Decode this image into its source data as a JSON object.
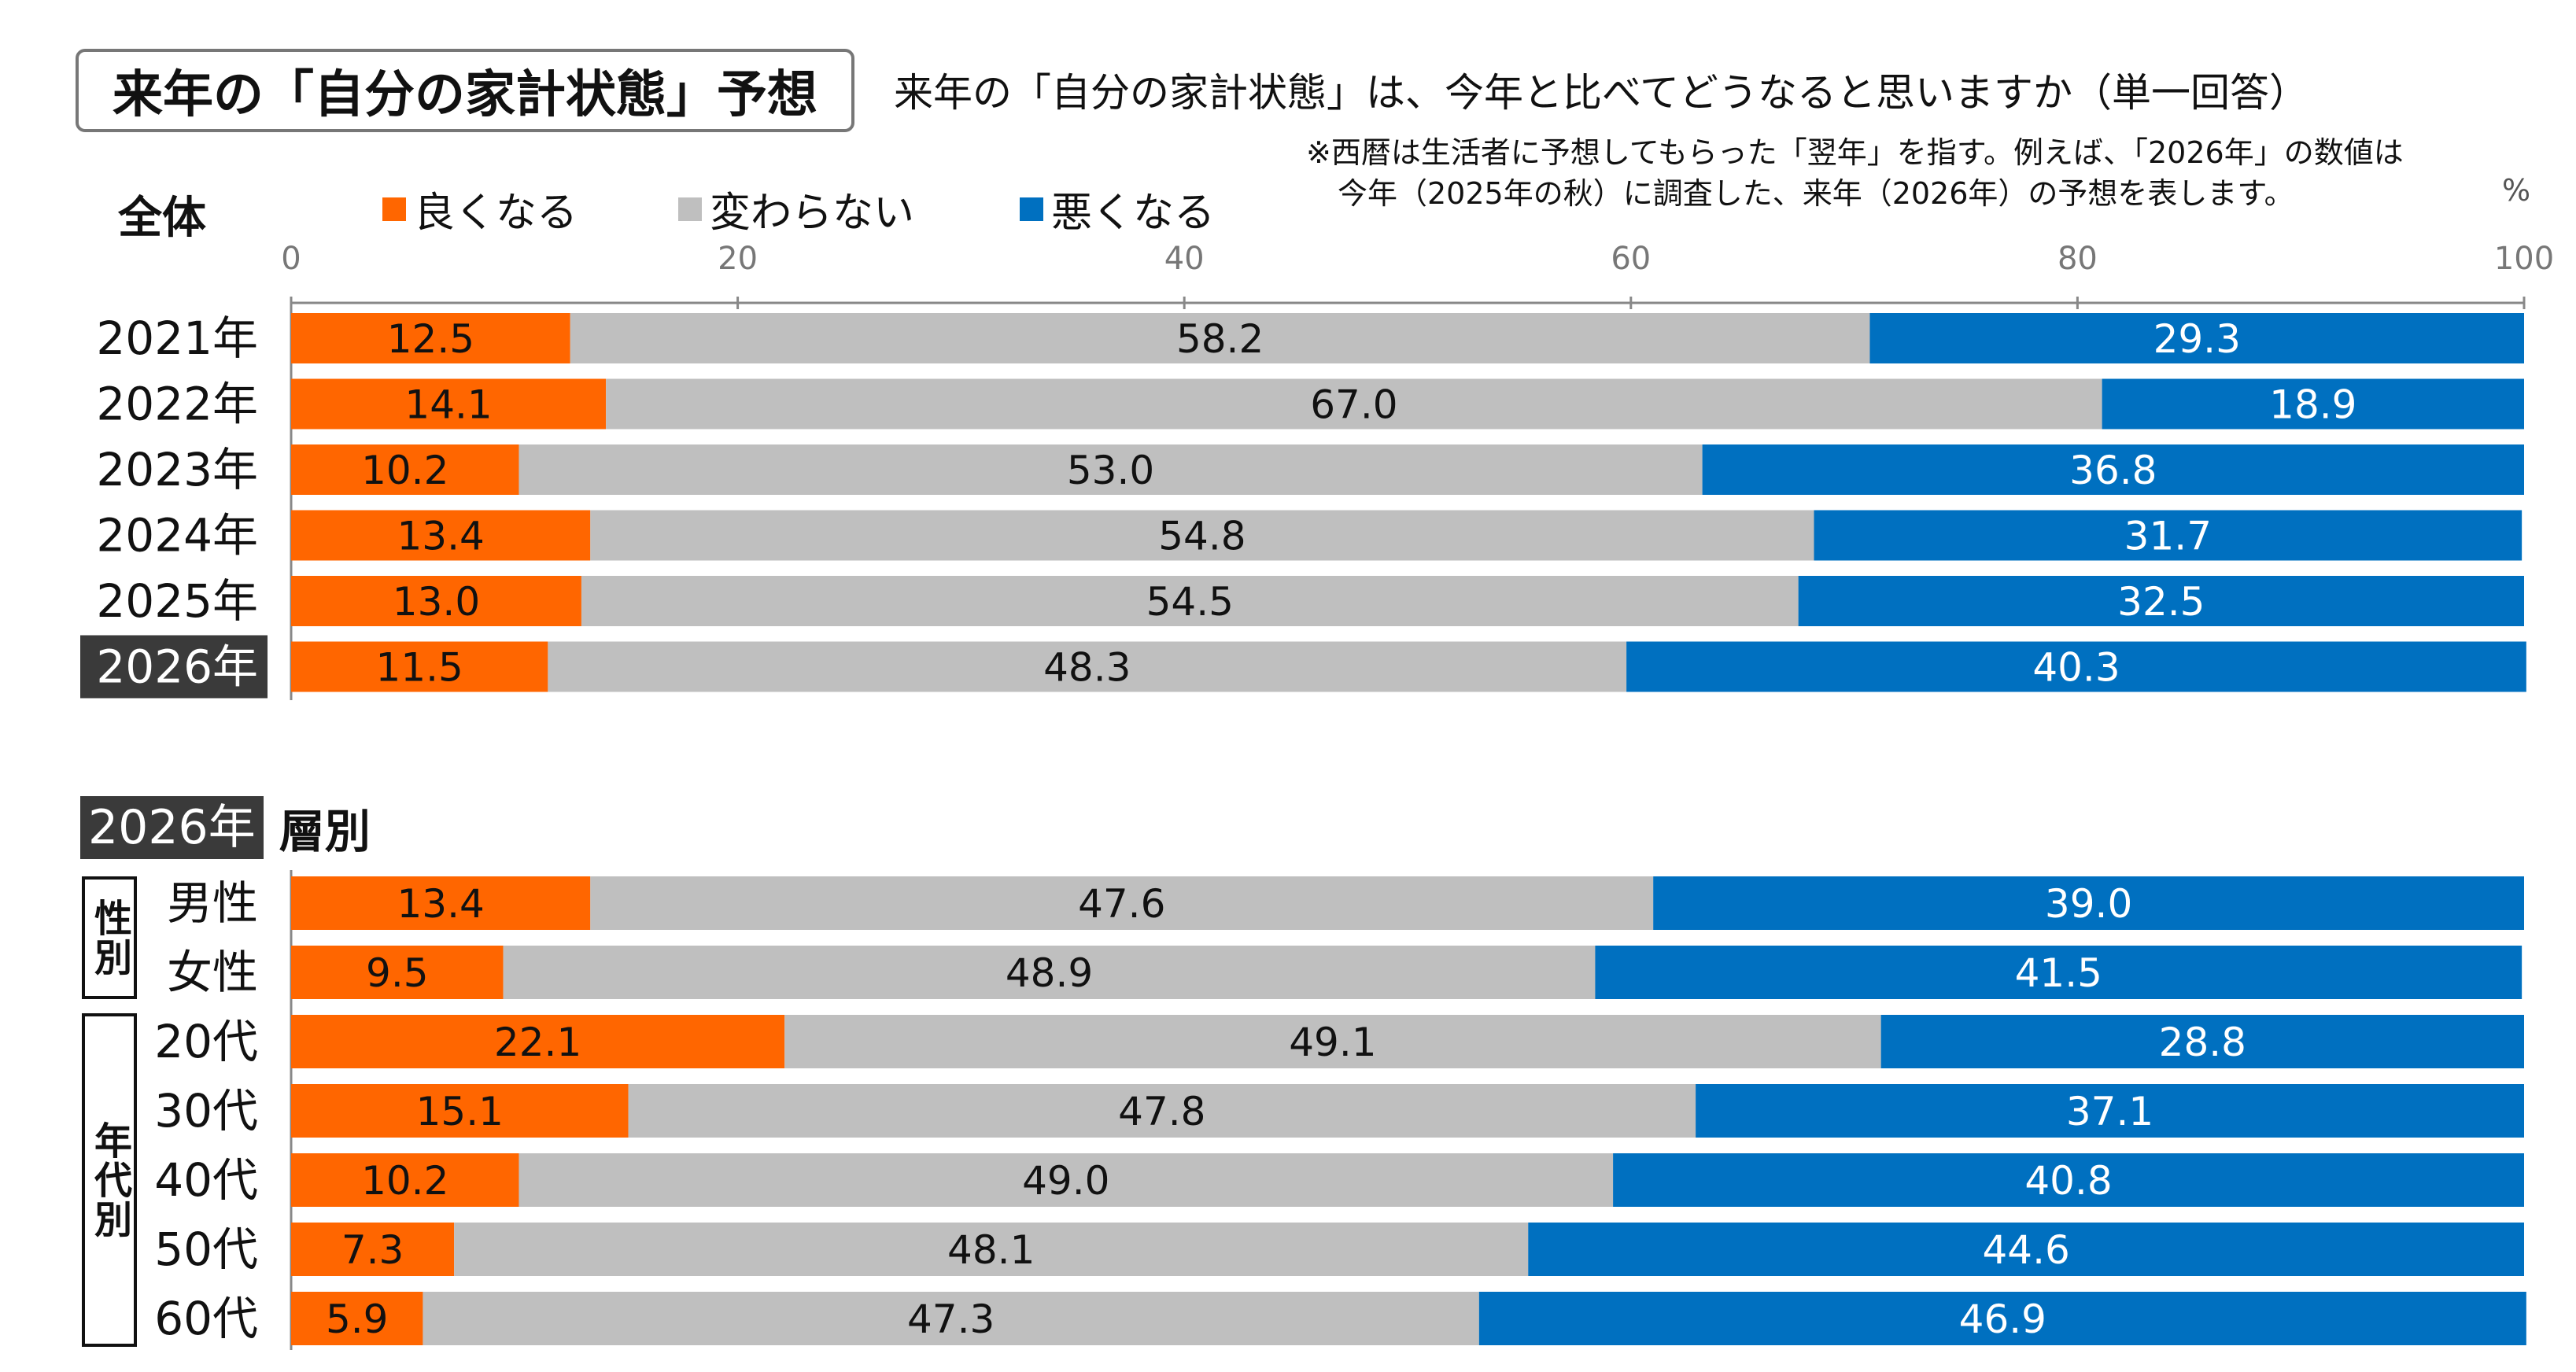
{
  "header": {
    "title": "来年の「自分の家計状態」予想",
    "question": "来年の「自分の家計状態」は、今年と比べてどうなると思いますか（単一回答）",
    "note_line1": "※西暦は生活者に予想してもらった「翌年」を指す。例えば、「2026年」の数値は",
    "note_line2": "今年（2025年の秋）に調査した、来年（2026年）の予想を表します。"
  },
  "section1": {
    "label": "全体"
  },
  "section2": {
    "year": "2026年",
    "label": "層別",
    "group_gender": "性別",
    "group_age": "年代別"
  },
  "unit": "%",
  "colors": {
    "good": "#FF6600",
    "same": "#BFBFBF",
    "bad": "#0070C0",
    "highlight": "#3A3A3A"
  },
  "chart_data": {
    "type": "bar",
    "orientation": "horizontal",
    "stacked": true,
    "xlim": [
      0,
      100
    ],
    "xticks": [
      "0",
      "20",
      "40",
      "60",
      "80",
      "100"
    ],
    "series_names": [
      "良くなる",
      "変わらない",
      "悪くなる"
    ],
    "overall": {
      "categories": [
        "2021年",
        "2022年",
        "2023年",
        "2024年",
        "2025年",
        "2026年"
      ],
      "highlight": "2026年",
      "series": [
        {
          "name": "良くなる",
          "values": [
            12.5,
            14.1,
            10.2,
            13.4,
            13.0,
            11.5
          ]
        },
        {
          "name": "変わらない",
          "values": [
            58.2,
            67.0,
            53.0,
            54.8,
            54.5,
            48.3
          ]
        },
        {
          "name": "悪くなる",
          "values": [
            29.3,
            18.9,
            36.8,
            31.7,
            32.5,
            40.3
          ]
        }
      ]
    },
    "segments": {
      "categories": [
        "男性",
        "女性",
        "20代",
        "30代",
        "40代",
        "50代",
        "60代"
      ],
      "series": [
        {
          "name": "良くなる",
          "values": [
            13.4,
            9.5,
            22.1,
            15.1,
            10.2,
            7.3,
            5.9
          ]
        },
        {
          "name": "変わらない",
          "values": [
            47.6,
            48.9,
            49.1,
            47.8,
            49.0,
            48.1,
            47.3
          ]
        },
        {
          "name": "悪くなる",
          "values": [
            39.0,
            41.5,
            28.8,
            37.1,
            40.8,
            44.6,
            46.9
          ]
        }
      ]
    }
  }
}
